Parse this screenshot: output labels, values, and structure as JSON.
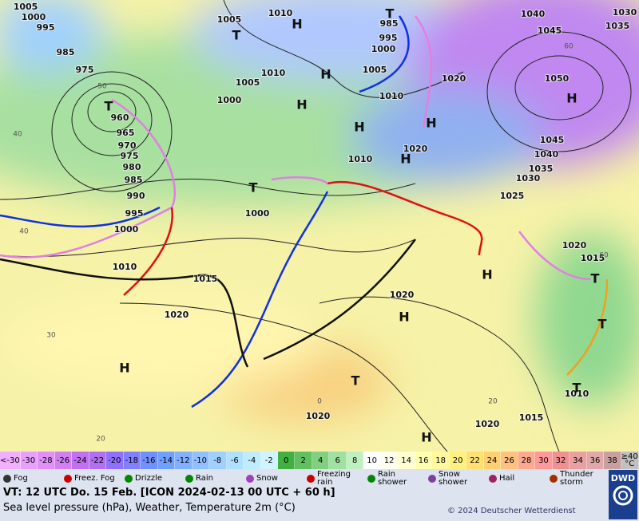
{
  "map": {
    "pressure_labels": [
      1005,
      1000,
      995,
      985,
      975,
      960,
      965,
      970,
      975,
      980,
      985,
      990,
      995,
      1000,
      1010,
      1015,
      1020,
      1005,
      1010,
      1010,
      1005,
      1000,
      985,
      995,
      1000,
      1005,
      1010,
      1020,
      1010,
      1020,
      1000,
      1040,
      1045,
      1030,
      1035,
      1050,
      1045,
      1040,
      1035,
      1030,
      1025,
      1020,
      1015,
      1020,
      1020,
      1020,
      1015,
      1010
    ],
    "centers": [
      "T",
      "H",
      "T",
      "H",
      "H",
      "T",
      "H",
      "H",
      "H",
      "T",
      "H",
      "H",
      "H",
      "T",
      "T",
      "H",
      "T",
      "T",
      "H"
    ],
    "temperature_labels": [
      40,
      50,
      60,
      40,
      30,
      20,
      0,
      20,
      60
    ]
  },
  "legend": {
    "scale": [
      {
        "label": "<-30",
        "color": "#f0b0ff"
      },
      {
        "label": "-30",
        "color": "#e8a0ff"
      },
      {
        "label": "-28",
        "color": "#e090f8"
      },
      {
        "label": "-26",
        "color": "#d080f0"
      },
      {
        "label": "-24",
        "color": "#c070f0"
      },
      {
        "label": "-22",
        "color": "#b070f0"
      },
      {
        "label": "-20",
        "color": "#9070ff"
      },
      {
        "label": "-18",
        "color": "#8080ff"
      },
      {
        "label": "-16",
        "color": "#7090ff"
      },
      {
        "label": "-14",
        "color": "#70a0ff"
      },
      {
        "label": "-12",
        "color": "#80b0ff"
      },
      {
        "label": "-10",
        "color": "#90c0ff"
      },
      {
        "label": "-8",
        "color": "#a0d0ff"
      },
      {
        "label": "-6",
        "color": "#b0e0ff"
      },
      {
        "label": "-4",
        "color": "#c0ecff"
      },
      {
        "label": "-2",
        "color": "#d0f4ff"
      },
      {
        "label": "0",
        "color": "#40b040"
      },
      {
        "label": "2",
        "color": "#60c060"
      },
      {
        "label": "4",
        "color": "#80d080"
      },
      {
        "label": "6",
        "color": "#a0e0a0"
      },
      {
        "label": "8",
        "color": "#c0f0c0"
      },
      {
        "label": "10",
        "color": "#ffffff"
      },
      {
        "label": "12",
        "color": "#fffff0"
      },
      {
        "label": "14",
        "color": "#ffffd0"
      },
      {
        "label": "16",
        "color": "#ffffb0"
      },
      {
        "label": "18",
        "color": "#fff8a0"
      },
      {
        "label": "20",
        "color": "#fff080"
      },
      {
        "label": "22",
        "color": "#ffe070"
      },
      {
        "label": "24",
        "color": "#ffd070"
      },
      {
        "label": "26",
        "color": "#ffc080"
      },
      {
        "label": "28",
        "color": "#ffa890"
      },
      {
        "label": "30",
        "color": "#ff9898"
      },
      {
        "label": "32",
        "color": "#f09090"
      },
      {
        "label": "34",
        "color": "#e8a0a0"
      },
      {
        "label": "36",
        "color": "#e0a8a8"
      },
      {
        "label": "38",
        "color": "#c8a0a0"
      },
      {
        "label": "≥40 °C",
        "color": "#c0c0c0"
      }
    ],
    "items": [
      "Fog",
      "Freez. Fog",
      "Drizzle",
      "Rain",
      "Snow",
      "Freezing rain",
      "Rain shower",
      "Snow shower",
      "Hail",
      "Thunder storm"
    ]
  },
  "footer": {
    "line1": "VT: 12 UTC Do.  15 Feb. [ICON 2024-02-13  00 UTC + 60 h]",
    "line2": "Sea level pressure (hPa), Weather, Temperature 2m (°C)",
    "copyright": "© 2024 Deutscher Wetterdienst",
    "logo": "DWD"
  }
}
